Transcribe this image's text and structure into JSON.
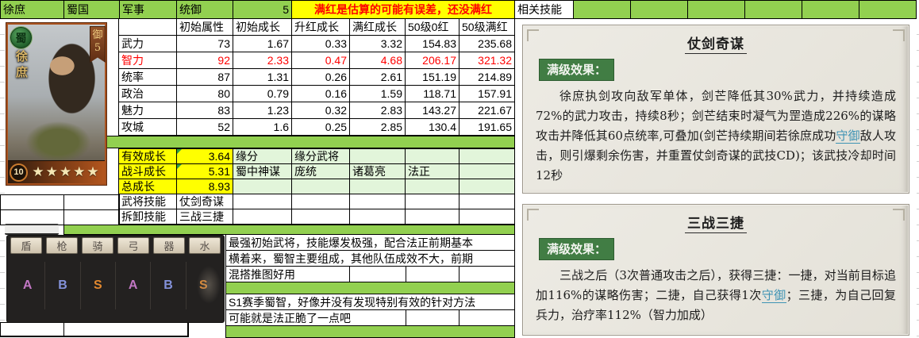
{
  "header": {
    "name": "徐庶",
    "faction": "蜀国",
    "category": "军事",
    "stat_label": "统御",
    "stat_value": "5",
    "note": "满红是估算的可能有误差，还没满红",
    "related_label": "相关技能"
  },
  "portrait": {
    "faction_badge": "蜀",
    "name": "徐庶",
    "pennant_char": "御",
    "pennant_num": "5",
    "level": "10",
    "stars": "★★★★★"
  },
  "stats": {
    "columns": [
      "初始属性",
      "初始成长",
      "升红成长",
      "满红成长",
      "50级0红",
      "50级满红"
    ],
    "rows": [
      {
        "label": "武力",
        "values": [
          "73",
          "1.67",
          "0.33",
          "3.32",
          "154.83",
          "235.68"
        ]
      },
      {
        "label": "智力",
        "values": [
          "92",
          "2.33",
          "0.47",
          "4.68",
          "206.17",
          "321.32"
        ]
      },
      {
        "label": "统率",
        "values": [
          "87",
          "1.31",
          "0.26",
          "2.61",
          "151.19",
          "214.89"
        ]
      },
      {
        "label": "政治",
        "values": [
          "80",
          "0.79",
          "0.16",
          "1.59",
          "118.71",
          "157.91"
        ]
      },
      {
        "label": "魅力",
        "values": [
          "83",
          "1.23",
          "0.32",
          "2.83",
          "143.27",
          "221.67"
        ]
      },
      {
        "label": "攻城",
        "values": [
          "52",
          "1.6",
          "0.25",
          "2.85",
          "130.4",
          "191.65"
        ]
      }
    ]
  },
  "growth": {
    "rows": [
      {
        "label": "有效成长",
        "value": "3.64"
      },
      {
        "label": "战斗成长",
        "value": "5.31"
      },
      {
        "label": "总成长",
        "value": "8.93"
      }
    ],
    "fate_label": "缘分",
    "fate_col_label": "缘分武将",
    "fate_name": "蜀中神谋",
    "fate_generals": [
      "庞统",
      "诸葛亮",
      "法正"
    ],
    "skill_rows": [
      {
        "label": "武将技能",
        "value": "仗剑奇谋"
      },
      {
        "label": "拆卸技能",
        "value": "三战三捷"
      }
    ]
  },
  "troops": {
    "types": [
      "盾",
      "枪",
      "骑",
      "弓",
      "器",
      "水"
    ],
    "grades": [
      {
        "letter": "A",
        "color": "#c277c4"
      },
      {
        "letter": "B",
        "color": "#8492da"
      },
      {
        "letter": "S",
        "color": "#e2882f"
      },
      {
        "letter": "A",
        "color": "#c277c4"
      },
      {
        "letter": "B",
        "color": "#8492da"
      },
      {
        "letter": "S",
        "color": "#e2882f"
      }
    ]
  },
  "comments": {
    "block1": [
      "最强初始武将，技能爆发极强，配合法正前期基本",
      "横着来，蜀智主要组成，其他队伍成效不大，前期",
      "混搭推图好用"
    ],
    "block2": [
      "S1赛季蜀智，好像并没有发现特别有效的针对方法",
      "可能就是法正脆了一点吧"
    ]
  },
  "cards": [
    {
      "title": "仗剑奇谋",
      "badge": "满级效果：",
      "segments": [
        {
          "text": "徐庶执剑攻向敌军单体，剑芒降低其30%武力，并持续造成72%的武力攻击，持续8秒；剑芒结束时凝气为罡造成226%的谋略攻击并降低其60点统率,可叠加(剑芒持续期间若徐庶成功"
        },
        {
          "text": "守御",
          "link": true
        },
        {
          "text": "敌人攻击，则引爆剩余伤害，并重置仗剑奇谋的武技CD)；该武技冷却时间12秒"
        }
      ]
    },
    {
      "title": "三战三捷",
      "badge": "满级效果：",
      "segments": [
        {
          "text": "三战之后（3次普通攻击之后），获得三捷：一捷，对当前目标追加116%的谋略伤害；二捷，自己获得1次"
        },
        {
          "text": "守御",
          "link": true
        },
        {
          "text": "；三捷，为自己回复兵力，治疗率112%（智力加成）"
        }
      ]
    }
  ],
  "colors": {
    "header_green": "#92d050",
    "highlight_yellow": "#ffff00",
    "alert_red": "#ff0000",
    "light_green": "#e2f5da",
    "badge_green": "#417d44",
    "keyword_teal": "#3e93b4"
  }
}
